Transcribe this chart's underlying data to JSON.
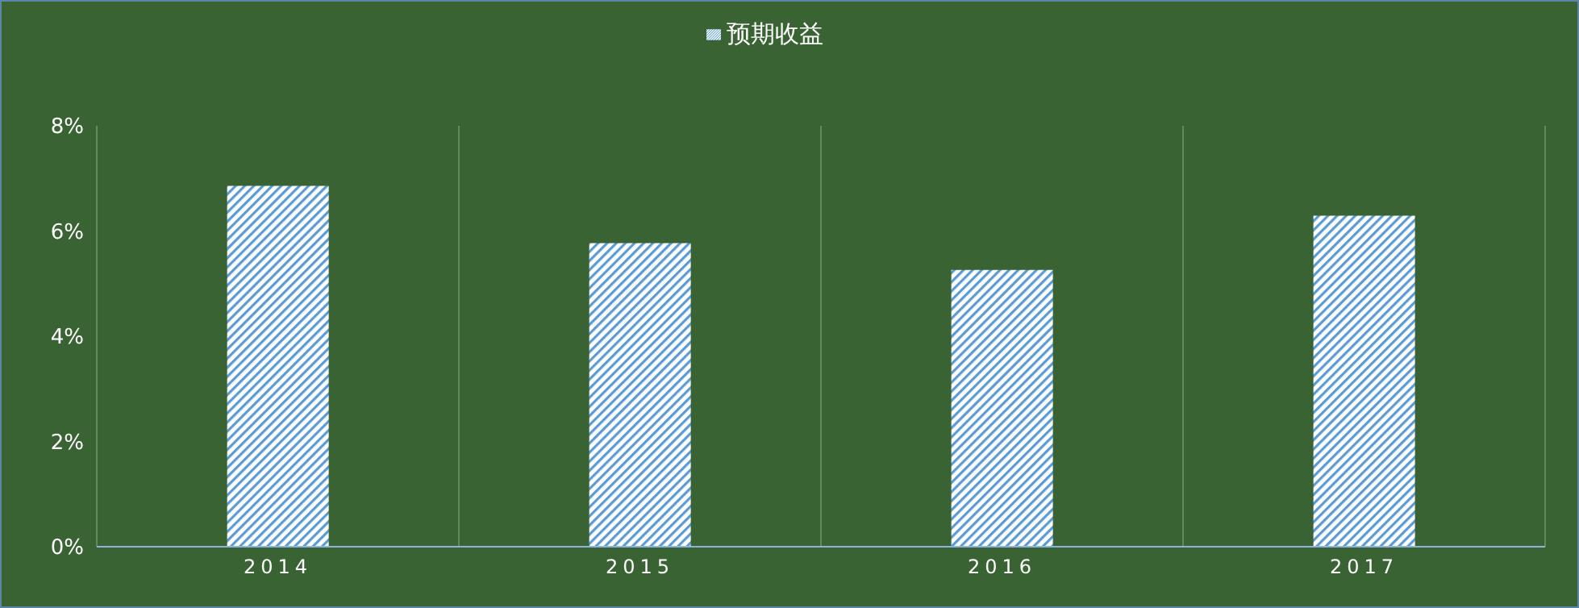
{
  "chart_data": {
    "type": "bar",
    "categories": [
      "2014",
      "2015",
      "2016",
      "2017"
    ],
    "series": [
      {
        "name": "预期收益",
        "color": "#5b9bd5",
        "values": [
          6.86,
          5.77,
          5.26,
          6.29
        ]
      }
    ],
    "ylim": [
      0,
      8
    ],
    "yticks": [
      {
        "value": 0,
        "label": "0%"
      },
      {
        "value": 2,
        "label": "2%"
      },
      {
        "value": 4,
        "label": "4%"
      },
      {
        "value": 6,
        "label": "6%"
      },
      {
        "value": 8,
        "label": "8%"
      }
    ],
    "grid": "x",
    "legend": "top"
  }
}
